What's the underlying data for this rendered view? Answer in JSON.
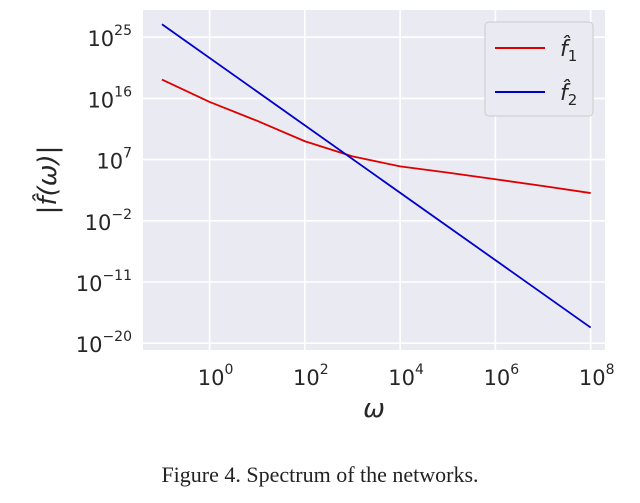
{
  "caption": "Figure 4. Spectrum of the networks.",
  "chart_data": {
    "type": "line",
    "xscale": "log",
    "yscale": "log",
    "xlabel": "ω",
    "ylabel": "|f̂(ω)|",
    "xlim": [
      0.04,
      200000000
    ],
    "ylim": [
      1e-21,
      1e+29
    ],
    "x_ticks": [
      {
        "base": "10",
        "exp": "0",
        "value": 1
      },
      {
        "base": "10",
        "exp": "2",
        "value": 100
      },
      {
        "base": "10",
        "exp": "4",
        "value": 10000
      },
      {
        "base": "10",
        "exp": "6",
        "value": 1000000
      },
      {
        "base": "10",
        "exp": "8",
        "value": 100000000
      }
    ],
    "y_ticks": [
      {
        "base": "10",
        "exp": "25",
        "value": 1e+25
      },
      {
        "base": "10",
        "exp": "16",
        "value": 1e+16
      },
      {
        "base": "10",
        "exp": "7",
        "value": 10000000.0
      },
      {
        "base": "10",
        "exp": "−2",
        "value": 0.01
      },
      {
        "base": "10",
        "exp": "−11",
        "value": 1e-11
      },
      {
        "base": "10",
        "exp": "−20",
        "value": 1e-20
      }
    ],
    "grid": true,
    "legend_position": "top-right",
    "series": [
      {
        "name": "f̂1",
        "legend_base": "f̂",
        "legend_sub": "1",
        "color": "#dd0000",
        "x": [
          0.1,
          1,
          10,
          100,
          1000,
          10000,
          100000,
          1000000,
          10000000,
          100000000
        ],
        "y": [
          6e+18,
          3000000000000000.0,
          5000000000000.0,
          5000000000.0,
          30000000.0,
          1000000.0,
          120000.0,
          13000.0,
          1300.0,
          120.0
        ]
      },
      {
        "name": "f̂2",
        "legend_base": "f̂",
        "legend_sub": "2",
        "color": "#0000cc",
        "x": [
          0.1,
          100000000
        ],
        "y": [
          8e+26,
          2e-18
        ]
      }
    ]
  }
}
